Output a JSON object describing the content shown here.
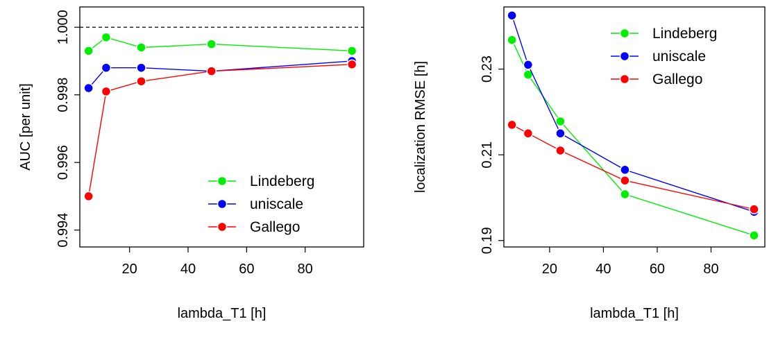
{
  "chart_data": [
    {
      "type": "line",
      "xlabel": "lambda_T1 [h]",
      "ylabel": "AUC [per unit]",
      "x": [
        6,
        12,
        24,
        48,
        96
      ],
      "xlim": [
        3,
        100
      ],
      "ylim": [
        0.9935,
        1.0006
      ],
      "xticks": [
        20,
        40,
        60,
        80
      ],
      "yticks": [
        0.994,
        0.996,
        0.998,
        1.0
      ],
      "ytick_labels": [
        "0.994",
        "0.996",
        "0.998",
        "1.000"
      ],
      "reference_line": {
        "y": 1.0,
        "style": "dashed",
        "color": "#000000"
      },
      "legend_position": "bottom-right",
      "series": [
        {
          "name": "Lindeberg",
          "color": "#00ee00",
          "values": [
            0.9993,
            0.9997,
            0.9994,
            0.9995,
            0.9993
          ]
        },
        {
          "name": "uniscale",
          "color": "#0000ff",
          "values": [
            0.9982,
            0.9988,
            0.9988,
            0.9987,
            0.999
          ]
        },
        {
          "name": "Gallego",
          "color": "#ff0000",
          "values": [
            0.995,
            0.9981,
            0.9984,
            0.9987,
            0.9989
          ]
        }
      ]
    },
    {
      "type": "line",
      "xlabel": "lambda_T1 [h]",
      "ylabel": "localization RMSE [h]",
      "x": [
        6,
        12,
        24,
        48,
        96
      ],
      "xlim": [
        3,
        100
      ],
      "ylim": [
        0.1885,
        0.2445
      ],
      "xticks": [
        20,
        40,
        60,
        80
      ],
      "yticks": [
        0.19,
        0.21,
        0.23
      ],
      "ytick_labels": [
        "0.19",
        "0.21",
        "0.23"
      ],
      "legend_position": "top-right",
      "series": [
        {
          "name": "Lindeberg",
          "color": "#00ee00",
          "values": [
            0.2368,
            0.2287,
            0.2178,
            0.2008,
            0.1912
          ]
        },
        {
          "name": "uniscale",
          "color": "#0000ff",
          "values": [
            0.2425,
            0.231,
            0.215,
            0.2065,
            0.1967
          ]
        },
        {
          "name": "Gallego",
          "color": "#ff0000",
          "values": [
            0.217,
            0.215,
            0.211,
            0.204,
            0.1973
          ]
        }
      ]
    }
  ]
}
